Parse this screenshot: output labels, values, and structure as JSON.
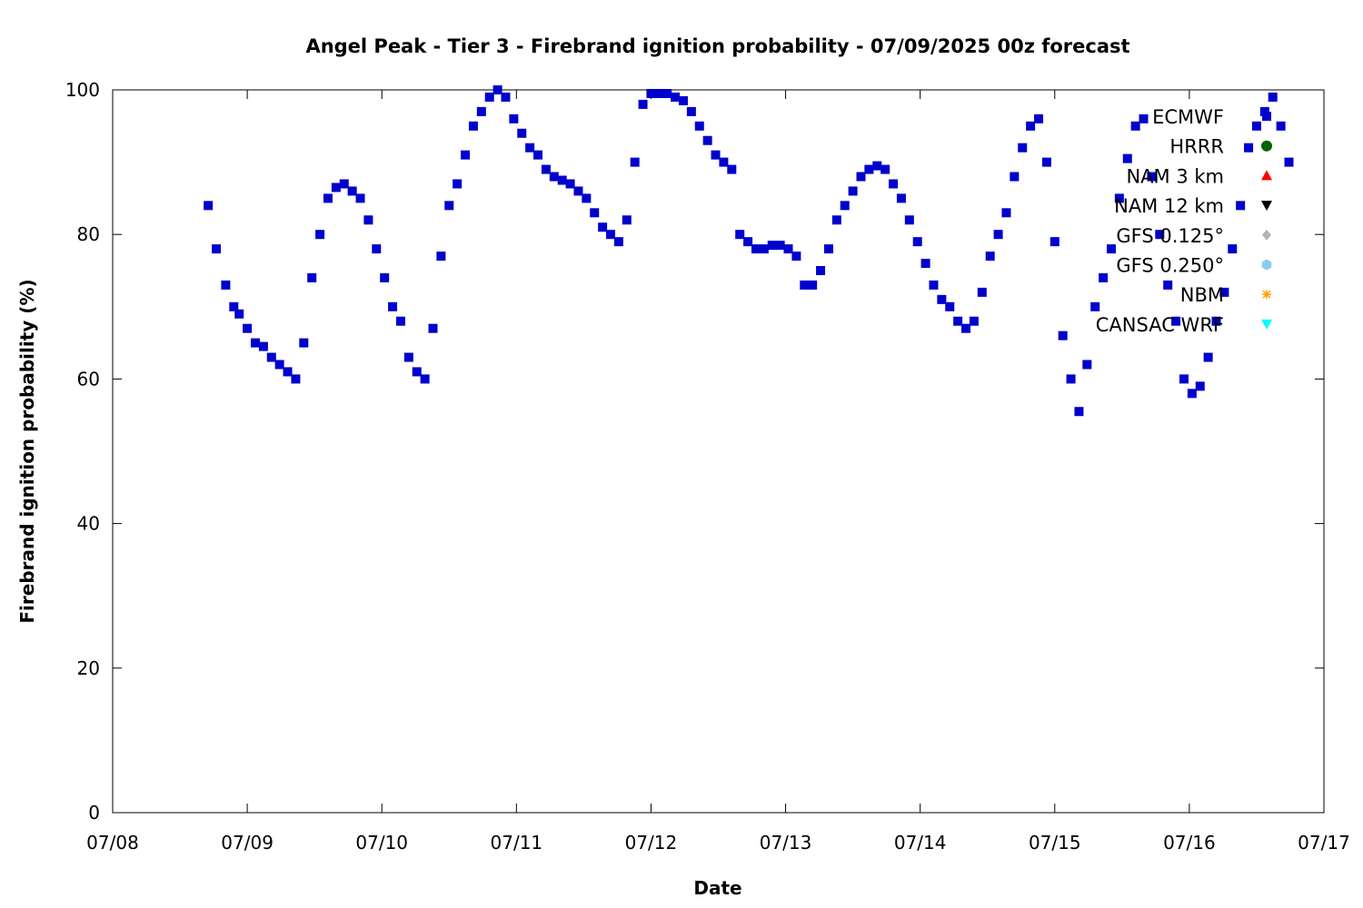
{
  "chart_data": {
    "type": "scatter",
    "title": "Angel Peak - Tier 3 - Firebrand ignition probability - 07/09/2025 00z forecast",
    "xlabel": "Date",
    "ylabel": "Firebrand ignition probability (%)",
    "x_ticks": [
      "07/08",
      "07/09",
      "07/10",
      "07/11",
      "07/12",
      "07/13",
      "07/14",
      "07/15",
      "07/16",
      "07/17"
    ],
    "y_ticks": [
      "0",
      "20",
      "40",
      "60",
      "80",
      "100"
    ],
    "xlim_days": [
      0,
      9
    ],
    "ylim": [
      0,
      100
    ],
    "grid": false,
    "legend_position": "top-right",
    "series": [
      {
        "name": "ECMWF",
        "marker": "square",
        "color": "#0000cd",
        "x": [
          0.71,
          0.77,
          0.84,
          0.9,
          0.94,
          1.0,
          1.06,
          1.12,
          1.18,
          1.24,
          1.3,
          1.36,
          1.42,
          1.48,
          1.54,
          1.6,
          1.66,
          1.72,
          1.78,
          1.84,
          1.9,
          1.96,
          2.02,
          2.08,
          2.14,
          2.2,
          2.26,
          2.32,
          2.38,
          2.44,
          2.5,
          2.56,
          2.62,
          2.68,
          2.74,
          2.8,
          2.86,
          2.92,
          2.98,
          3.04,
          3.1,
          3.16,
          3.22,
          3.28,
          3.34,
          3.4,
          3.46,
          3.52,
          3.58,
          3.64,
          3.7,
          3.76,
          3.82,
          3.88,
          3.94,
          4.0,
          4.06,
          4.12,
          4.18,
          4.24,
          4.3,
          4.36,
          4.42,
          4.48,
          4.54,
          4.6,
          4.66,
          4.72,
          4.78,
          4.84,
          4.9,
          4.96,
          5.02,
          5.08,
          5.14,
          5.2,
          5.26,
          5.32,
          5.38,
          5.44,
          5.5,
          5.56,
          5.62,
          5.68,
          5.74,
          5.8,
          5.86,
          5.92,
          5.98,
          6.04,
          6.1,
          6.16,
          6.22,
          6.28,
          6.34,
          6.4,
          6.46,
          6.52,
          6.58,
          6.64,
          6.7,
          6.76,
          6.82,
          6.88,
          6.94,
          7.0,
          7.06,
          7.12,
          7.18,
          7.24,
          7.3,
          7.36,
          7.42,
          7.48,
          7.54,
          7.6,
          7.66,
          7.72,
          7.78,
          7.84,
          7.9,
          7.96,
          8.02,
          8.08,
          8.14,
          8.2,
          8.26,
          8.32,
          8.38,
          8.44,
          8.5,
          8.56,
          8.62,
          8.68,
          8.74
        ],
        "y": [
          84,
          78,
          73,
          70,
          69,
          67,
          65,
          64.5,
          63,
          62,
          61,
          60,
          65,
          74,
          80,
          85,
          86.5,
          87,
          86,
          85,
          82,
          78,
          74,
          70,
          68,
          63,
          61,
          60,
          67,
          77,
          84,
          87,
          91,
          95,
          97,
          99,
          100,
          99,
          96,
          94,
          92,
          91,
          89,
          88,
          87.5,
          87,
          86,
          85,
          83,
          81,
          80,
          79,
          82,
          90,
          98,
          99.5,
          99.5,
          99.5,
          99,
          98.5,
          97,
          95,
          93,
          91,
          90,
          89,
          80,
          79,
          78,
          78,
          78.5,
          78.5,
          78,
          77,
          73,
          73,
          75,
          78,
          82,
          84,
          86,
          88,
          89,
          89.5,
          89,
          87,
          85,
          82,
          79,
          76,
          73,
          71,
          70,
          68,
          67,
          68,
          72,
          77,
          80,
          83,
          88,
          92,
          95,
          96,
          90,
          79,
          66,
          60,
          55.5,
          62,
          70,
          74,
          78,
          85,
          90.5,
          95,
          96,
          88,
          80,
          73,
          68,
          60,
          58,
          59,
          63,
          68,
          72,
          78,
          84,
          92,
          95,
          97,
          99,
          95,
          90
        ]
      }
    ]
  },
  "series_list": [
    {
      "name": "ECMWF",
      "marker": "square",
      "color": "#0000cd"
    },
    {
      "name": "HRRR",
      "marker": "circle",
      "color": "#006400"
    },
    {
      "name": "NAM 3 km",
      "marker": "triangle-up",
      "color": "#ff0000"
    },
    {
      "name": "NAM 12 km",
      "marker": "triangle-down",
      "color": "#000000"
    },
    {
      "name": "GFS 0.125°",
      "marker": "diamond",
      "color": "#b4b4b4"
    },
    {
      "name": "GFS 0.250°",
      "marker": "hexagon",
      "color": "#87ceeb"
    },
    {
      "name": "NBM",
      "marker": "star",
      "color": "#ffa500"
    },
    {
      "name": "CANSAC WRF",
      "marker": "triangle-down",
      "color": "#00ffff"
    }
  ]
}
